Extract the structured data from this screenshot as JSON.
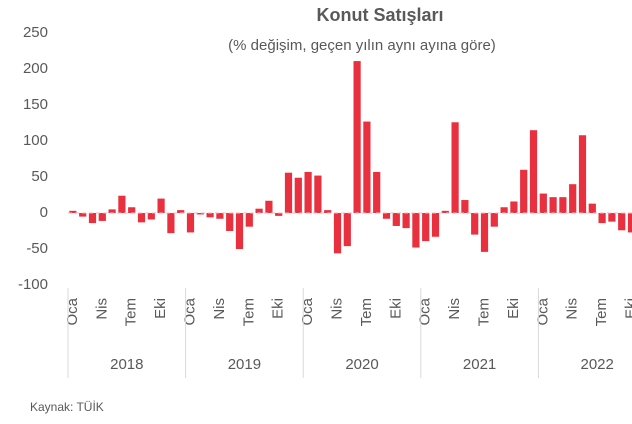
{
  "chart_data": {
    "type": "bar",
    "title": "Konut Satışları",
    "subtitle": "(% değişim, geçen yılın aynı ayına göre)",
    "source": "Kaynak: TÜİK",
    "categories": [
      "Oca",
      null,
      null,
      "Nis",
      null,
      null,
      "Tem",
      null,
      null,
      "Eki",
      null,
      null,
      "Oca",
      null,
      null,
      "Nis",
      null,
      null,
      "Tem",
      null,
      null,
      "Eki",
      null,
      null,
      "Oca",
      null,
      null,
      "Nis",
      null,
      null,
      "Tem",
      null,
      null,
      "Eki",
      null,
      null,
      "Oca",
      null,
      null,
      "Nis",
      null,
      null,
      "Tem",
      null,
      null,
      "Eki",
      null,
      null,
      "Oca",
      null,
      null,
      "Nis",
      null,
      null,
      "Tem",
      null,
      null,
      "Eki"
    ],
    "groups": [
      "2018",
      "2019",
      "2020",
      "2021",
      "2022"
    ],
    "values": [
      3,
      -5,
      -14,
      -11,
      5,
      24,
      8,
      -13,
      -9,
      20,
      -28,
      4,
      -27,
      -2,
      -6,
      -8,
      -25,
      -50,
      -19,
      6,
      17,
      -4,
      56,
      49,
      57,
      52,
      4,
      -56,
      -46,
      211,
      127,
      57,
      -8,
      -18,
      -21,
      -48,
      -39,
      -33,
      3,
      126,
      18,
      -30,
      -54,
      -19,
      8,
      16,
      60,
      115,
      27,
      22,
      22,
      40,
      108,
      13,
      -14,
      -12,
      -24,
      -27
    ],
    "color": "#e8303f",
    "ylim": [
      -100,
      250
    ],
    "yticks": [
      -100,
      -50,
      0,
      50,
      100,
      150,
      200,
      250
    ]
  }
}
